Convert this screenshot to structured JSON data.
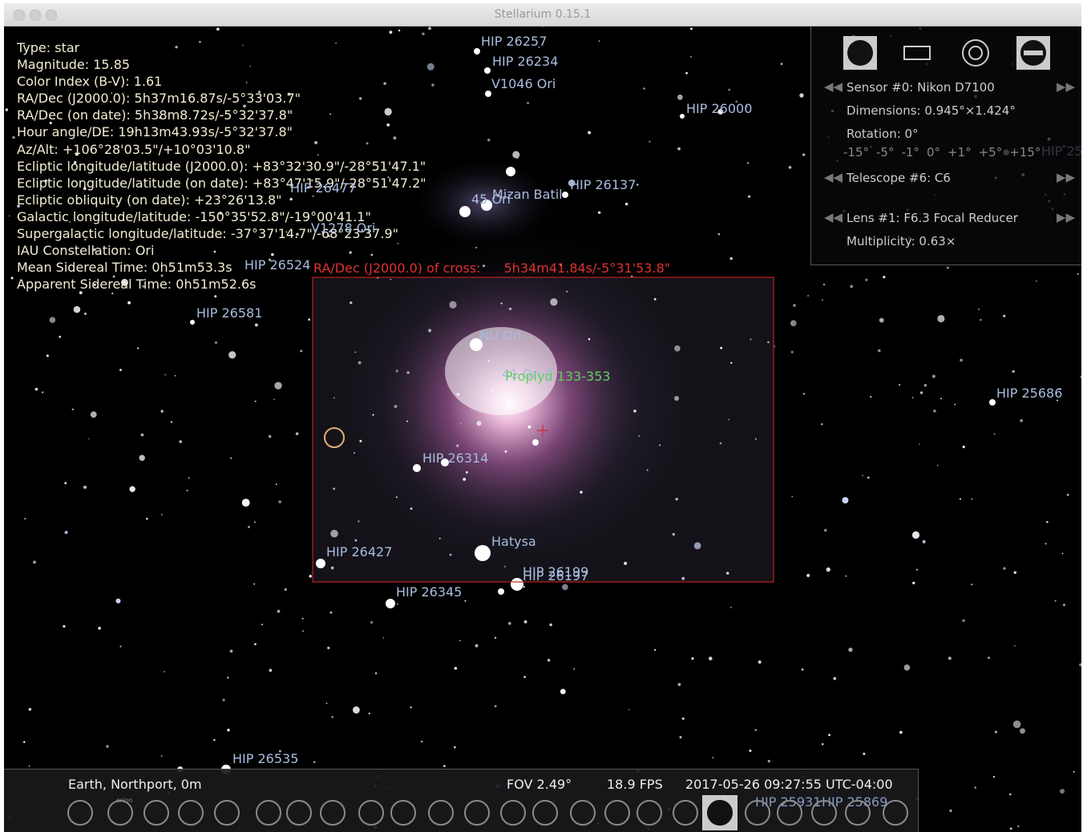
{
  "window": {
    "title": "Stellarium 0.15.1"
  },
  "info_panel": {
    "lines": [
      "Type: star",
      "Magnitude: 15.85",
      "Color Index (B-V): 1.61",
      "RA/Dec (J2000.0): 5h37m16.87s/-5°33'03.7\"",
      "RA/Dec (on date): 5h38m8.72s/-5°32'37.8\"",
      "Hour angle/DE: 19h13m43.93s/-5°32'37.8\"",
      "Az/Alt: +106°28'03.5\"/+10°03'10.8\"",
      "Ecliptic longitude/latitude (J2000.0): +83°32'30.9\"/-28°51'47.1\"",
      "Ecliptic longitude/latitude (on date): +83°47'15.9\"/-28°51'47.2\"",
      "Ecliptic obliquity (on date): +23°26'13.8\"",
      "Galactic longitude/latitude: -150°35'52.8\"/-19°00'41.1\"",
      "Supergalactic longitude/latitude: -37°37'14.7\"/-68°23'37.9\"",
      "IAU Constellation: Ori",
      "Mean Sidereal Time: 0h51m53.3s",
      "Apparent Sidereal Time: 0h51m52.6s"
    ]
  },
  "sky_labels": [
    "HIP 26257",
    "HIP 26234",
    "V1046 Ori",
    "HIP 26000",
    "HIP 26137",
    "HIP 26477",
    "Mizan Batil",
    "45 Ori",
    "V1278 Ori",
    "HIP 26524",
    "HIP 26581",
    "NU Ori",
    "41 Ori C",
    "Proplyd 133-353",
    "HIP 26314",
    "Hatysa",
    "HIP 26427",
    "HIP 26199",
    "HIP 26197",
    "HIP 26345",
    "HIP 25686",
    "HIP 26535",
    "HIP 25"
  ],
  "cross": {
    "label": "RA/Dec (J2000.0) of cross:",
    "value": "5h34m41.84s/-5°31'53.8\""
  },
  "oculars": {
    "sensor": "Sensor #0: Nikon D7100",
    "dimensions": "Dimensions: 0.945°×1.424°",
    "rotation": "Rotation: 0°",
    "rotation_steps": [
      "-15°",
      "-5°",
      "-1°",
      "0°",
      "+1°",
      "+5°",
      "+15°"
    ],
    "telescope": "Telescope #6: C6",
    "lens": "Lens #1: F6.3 Focal Reducer",
    "multiplicity": "Multiplicity: 0.63×"
  },
  "status_bar": {
    "location": "Earth, Northport, 0m",
    "fov": "FOV 2.49°",
    "fps": "18.9 FPS",
    "datetime": "2017-05-26 09:27:55 UTC-04:00",
    "labels": [
      "HIP 25931",
      "HIP 25869"
    ],
    "constellation_icon": "orion"
  }
}
